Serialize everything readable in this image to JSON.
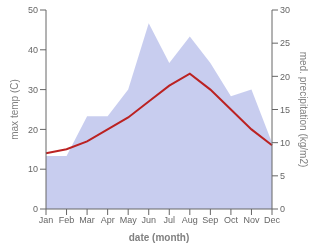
{
  "chart_data": {
    "type": "line",
    "categories": [
      "Jan",
      "Feb",
      "Mar",
      "Apr",
      "May",
      "Jun",
      "Jul",
      "Aug",
      "Sep",
      "Oct",
      "Nov",
      "Dec"
    ],
    "xlabel": "date (month)",
    "ylabel": "max temp (C)",
    "y2label": "med. precipitation (kg/m2)",
    "series": [
      {
        "type": "area",
        "axis": "y2",
        "color": "#b0b8e8",
        "values": [
          8,
          8,
          14,
          14,
          18,
          28,
          22,
          26,
          22,
          17,
          18,
          10
        ]
      },
      {
        "type": "line",
        "color": "#bb2222",
        "values": [
          14,
          15,
          17,
          20,
          23,
          27,
          31,
          34,
          30,
          25,
          20,
          16
        ]
      }
    ],
    "ylim": [
      0,
      50
    ],
    "yticks": [
      0,
      10,
      20,
      30,
      40,
      50
    ],
    "y2lim": [
      0,
      30
    ],
    "y2ticks": [
      0,
      5,
      10,
      15,
      20,
      25,
      30
    ],
    "grid": false
  }
}
